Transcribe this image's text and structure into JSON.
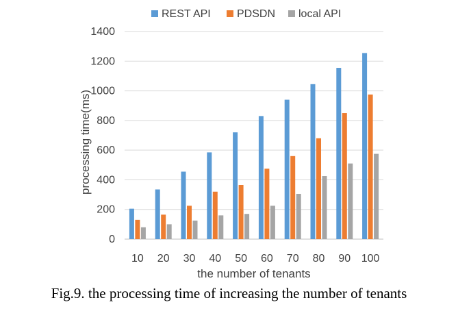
{
  "caption": "Fig.9. the processing time of increasing the number of tenants",
  "chart_data": {
    "type": "bar",
    "title": "",
    "xlabel": "the number of tenants",
    "ylabel": "processing time(ms)",
    "ylim": [
      0,
      1400
    ],
    "yticks": [
      0,
      200,
      400,
      600,
      800,
      1000,
      1200,
      1400
    ],
    "grid": true,
    "legend_position": "top",
    "categories": [
      "10",
      "20",
      "30",
      "40",
      "50",
      "60",
      "70",
      "80",
      "90",
      "100"
    ],
    "series": [
      {
        "name": "REST API",
        "color": "#5b9bd5",
        "values": [
          205,
          335,
          455,
          585,
          720,
          830,
          940,
          1045,
          1155,
          1255
        ]
      },
      {
        "name": "PDSDN",
        "color": "#ed7d31",
        "values": [
          130,
          165,
          225,
          320,
          365,
          475,
          560,
          680,
          850,
          975
        ]
      },
      {
        "name": "local API",
        "color": "#a5a5a5",
        "values": [
          80,
          100,
          125,
          160,
          170,
          225,
          305,
          425,
          510,
          575
        ]
      }
    ]
  }
}
